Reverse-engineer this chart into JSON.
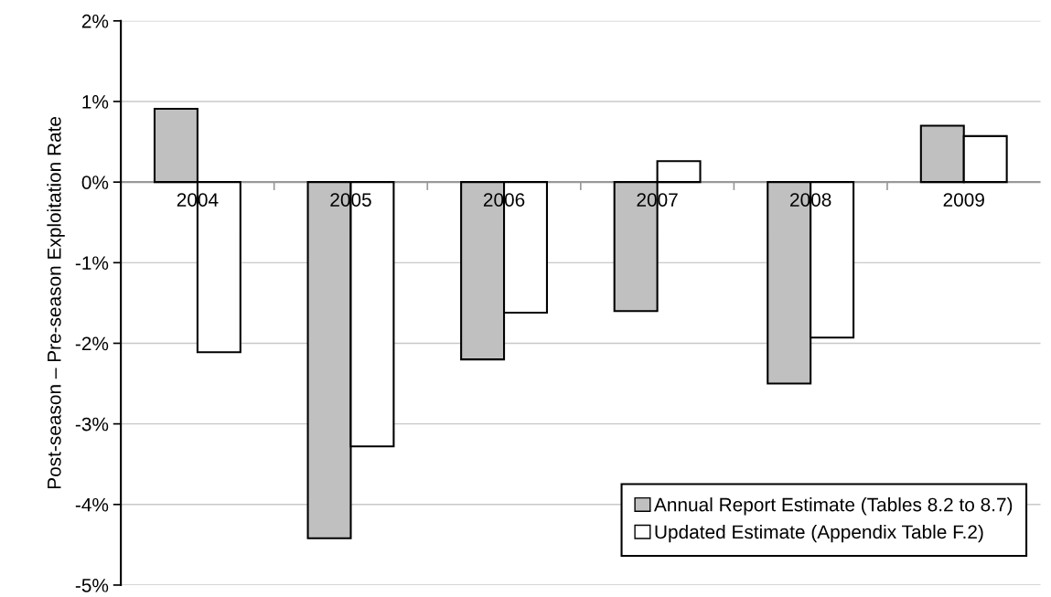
{
  "chart_data": {
    "type": "bar",
    "ylabel": "Post-season – Pre-season Exploitation Rate",
    "categories": [
      "2004",
      "2005",
      "2006",
      "2007",
      "2008",
      "2009"
    ],
    "series": [
      {
        "name": "Annual Report Estimate (Tables 8.2 to 8.7)",
        "color": "#c0c0c0",
        "values": [
          0.91,
          -4.42,
          -2.2,
          -1.6,
          -2.5,
          0.7
        ]
      },
      {
        "name": "Updated Estimate (Appendix Table F.2)",
        "color": "#ffffff",
        "values": [
          -2.11,
          -3.28,
          -1.62,
          0.26,
          -1.93,
          0.57
        ]
      }
    ],
    "ylim": [
      -5,
      2
    ],
    "yticks": [
      {
        "value": -5,
        "label": "-5%"
      },
      {
        "value": -4,
        "label": "-4%"
      },
      {
        "value": -3,
        "label": "-3%"
      },
      {
        "value": -2,
        "label": "-2%"
      },
      {
        "value": -1,
        "label": "-1%"
      },
      {
        "value": 0,
        "label": "0%"
      },
      {
        "value": 1,
        "label": "1%"
      },
      {
        "value": 2,
        "label": "2%"
      }
    ],
    "grid": "y",
    "legend": "bottom right"
  }
}
